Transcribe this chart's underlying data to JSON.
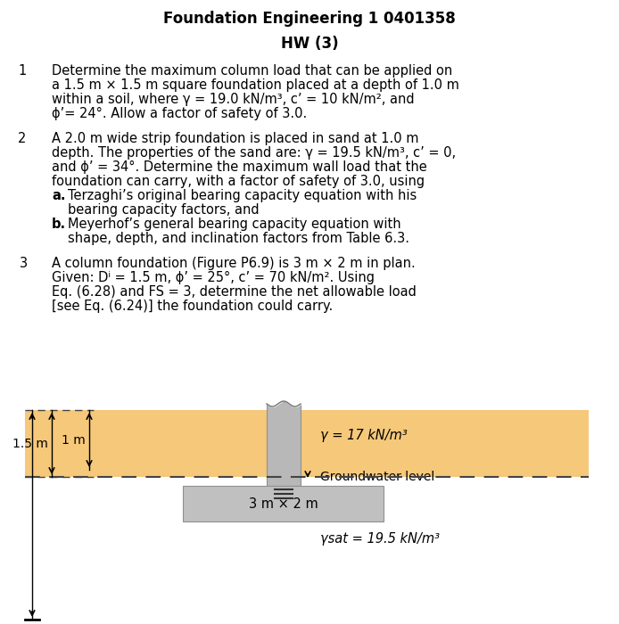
{
  "title": "Foundation Engineering 1 0401358",
  "subtitle": "HW (3)",
  "bg_color": "#ffffff",
  "text_color": "#000000",
  "q1_num": "1",
  "q1_text": [
    "Determine the maximum column load that can be applied on",
    "a 1.5 m × 1.5 m square foundation placed at a depth of 1.0 m",
    "within a soil, where γ = 19.0 kN/m³, c’ = 10 kN/m², and",
    "ϕ’= 24°. Allow a factor of safety of 3.0."
  ],
  "q2_num": "2",
  "q2_text": [
    "A 2.0 m wide strip foundation is placed in sand at 1.0 m",
    "depth. The properties of the sand are: γ = 19.5 kN/m³, c’ = 0,",
    "and ϕ’ = 34°. Determine the maximum wall load that the",
    "foundation can carry, with a factor of safety of 3.0, using"
  ],
  "q3_num": "3",
  "q3_text": [
    "A column foundation (Figure P6.9) is 3 m × 2 m in plan.",
    "Given: Dⁱ = 1.5 m, ϕ’ = 25°, c’ = 70 kN/m². Using",
    "Eq. (6.28) and FS = 3, determine the net allowable load",
    "[see Eq. (6.24)] the foundation could carry."
  ],
  "diagram": {
    "soil_color": "#f5c87a",
    "foundation_color": "#c0c0c0",
    "column_color": "#b8b8b8",
    "dashed_color": "#444444",
    "gamma_label": "γ = 17 kN/m³",
    "gamma_sat_label": "γsat = 19.5 kN/m³",
    "gw_label": "Groundwater level",
    "dim1_label": "1.5 m",
    "dim2_label": "1 m",
    "footing_label": "3 m × 2 m"
  }
}
